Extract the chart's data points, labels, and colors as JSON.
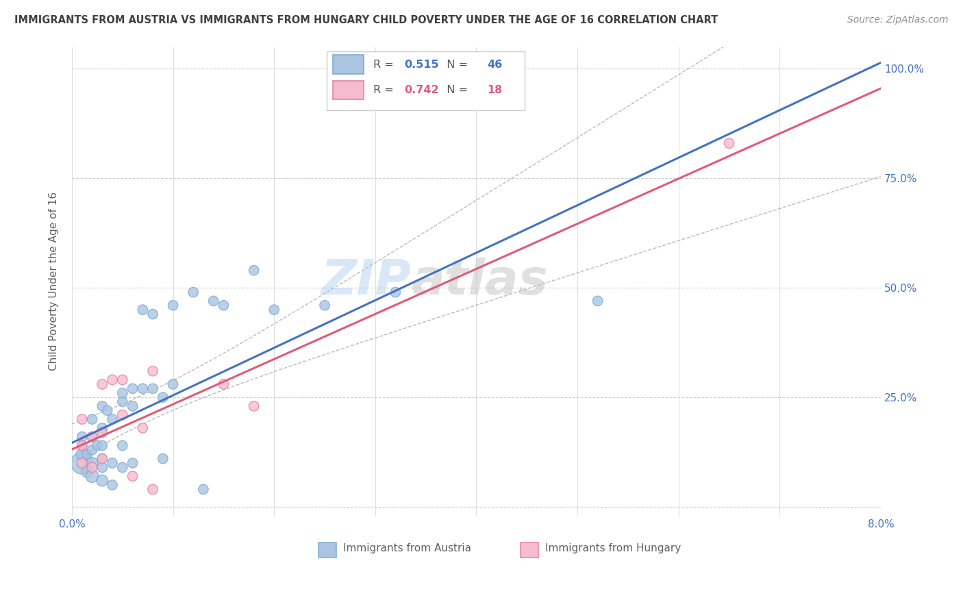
{
  "title": "IMMIGRANTS FROM AUSTRIA VS IMMIGRANTS FROM HUNGARY CHILD POVERTY UNDER THE AGE OF 16 CORRELATION CHART",
  "source": "Source: ZipAtlas.com",
  "ylabel": "Child Poverty Under the Age of 16",
  "xlim": [
    0.0,
    0.08
  ],
  "ylim": [
    -0.02,
    1.05
  ],
  "xticks": [
    0.0,
    0.01,
    0.02,
    0.03,
    0.04,
    0.05,
    0.06,
    0.07,
    0.08
  ],
  "ytick_positions": [
    0.0,
    0.25,
    0.5,
    0.75,
    1.0
  ],
  "yticklabels_right": [
    "",
    "25.0%",
    "50.0%",
    "75.0%",
    "100.0%"
  ],
  "austria_R": 0.515,
  "austria_N": 46,
  "hungary_R": 0.742,
  "hungary_N": 18,
  "austria_color": "#aac4e2",
  "austria_edge_color": "#7aaed6",
  "hungary_color": "#f5bcd0",
  "hungary_edge_color": "#e8809e",
  "austria_line_color": "#4472c4",
  "hungary_line_color": "#e05a7a",
  "watermark": "ZIPatlas",
  "austria_x": [
    0.001,
    0.001,
    0.001,
    0.001,
    0.0015,
    0.0015,
    0.002,
    0.002,
    0.002,
    0.002,
    0.002,
    0.0025,
    0.003,
    0.003,
    0.003,
    0.003,
    0.003,
    0.003,
    0.0035,
    0.004,
    0.004,
    0.004,
    0.005,
    0.005,
    0.005,
    0.005,
    0.006,
    0.006,
    0.006,
    0.007,
    0.007,
    0.008,
    0.008,
    0.009,
    0.009,
    0.01,
    0.01,
    0.012,
    0.013,
    0.014,
    0.015,
    0.018,
    0.02,
    0.025,
    0.032,
    0.052
  ],
  "austria_y": [
    0.1,
    0.12,
    0.14,
    0.16,
    0.08,
    0.12,
    0.07,
    0.1,
    0.13,
    0.16,
    0.2,
    0.14,
    0.06,
    0.09,
    0.11,
    0.14,
    0.18,
    0.23,
    0.22,
    0.05,
    0.1,
    0.2,
    0.09,
    0.14,
    0.24,
    0.26,
    0.1,
    0.23,
    0.27,
    0.27,
    0.45,
    0.27,
    0.44,
    0.11,
    0.25,
    0.28,
    0.46,
    0.49,
    0.04,
    0.47,
    0.46,
    0.54,
    0.45,
    0.46,
    0.49,
    0.47
  ],
  "austria_sizes": [
    300,
    80,
    60,
    60,
    80,
    60,
    100,
    80,
    60,
    60,
    60,
    60,
    80,
    60,
    60,
    60,
    60,
    60,
    60,
    60,
    60,
    60,
    60,
    60,
    60,
    60,
    60,
    60,
    60,
    60,
    60,
    60,
    60,
    60,
    60,
    60,
    60,
    60,
    60,
    60,
    60,
    60,
    60,
    60,
    60,
    60
  ],
  "hungary_x": [
    0.001,
    0.001,
    0.001,
    0.002,
    0.002,
    0.003,
    0.003,
    0.003,
    0.004,
    0.005,
    0.005,
    0.006,
    0.007,
    0.008,
    0.008,
    0.015,
    0.018,
    0.065
  ],
  "hungary_y": [
    0.1,
    0.14,
    0.2,
    0.09,
    0.16,
    0.11,
    0.17,
    0.28,
    0.29,
    0.21,
    0.29,
    0.07,
    0.18,
    0.04,
    0.31,
    0.28,
    0.23,
    0.83
  ],
  "hungary_sizes": [
    60,
    60,
    60,
    60,
    60,
    60,
    60,
    60,
    60,
    60,
    60,
    60,
    60,
    60,
    60,
    60,
    60,
    60
  ],
  "grid_color": "#d0d0d0",
  "background_color": "#ffffff",
  "title_color": "#404040",
  "source_color": "#909090",
  "axis_label_color": "#606060",
  "right_tick_color": "#4472c4",
  "bottom_tick_color": "#4472c4"
}
